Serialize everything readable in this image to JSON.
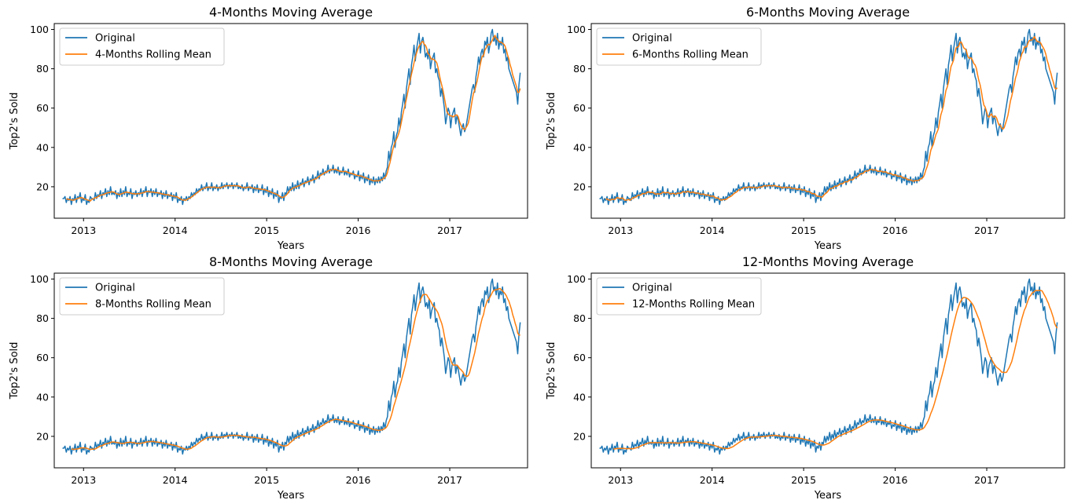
{
  "chart_data": [
    {
      "type": "line",
      "title": "4-Months Moving Average",
      "xlabel": "Years",
      "ylabel": "Top2's Sold",
      "xlim": [
        2012.68,
        2017.85
      ],
      "ylim": [
        4,
        103
      ],
      "xticks": [
        "2013",
        "2014",
        "2015",
        "2016",
        "2017"
      ],
      "yticks": [
        20,
        40,
        60,
        80,
        100
      ],
      "legend": "top-left",
      "series": [
        {
          "name": "Original",
          "color": "#1f77b4"
        },
        {
          "name": "4-Months Rolling Mean",
          "color": "#ff7f0e",
          "window": 4
        }
      ]
    },
    {
      "type": "line",
      "title": "6-Months Moving Average",
      "xlabel": "Years",
      "ylabel": "Top2's Sold",
      "xlim": [
        2012.68,
        2017.85
      ],
      "ylim": [
        4,
        103
      ],
      "xticks": [
        "2013",
        "2014",
        "2015",
        "2016",
        "2017"
      ],
      "yticks": [
        20,
        40,
        60,
        80,
        100
      ],
      "legend": "top-left",
      "series": [
        {
          "name": "Original",
          "color": "#1f77b4"
        },
        {
          "name": "6-Months Rolling Mean",
          "color": "#ff7f0e",
          "window": 6
        }
      ]
    },
    {
      "type": "line",
      "title": "8-Months Moving Average",
      "xlabel": "Years",
      "ylabel": "Top2's Sold",
      "xlim": [
        2012.68,
        2017.85
      ],
      "ylim": [
        4,
        103
      ],
      "xticks": [
        "2013",
        "2014",
        "2015",
        "2016",
        "2017"
      ],
      "yticks": [
        20,
        40,
        60,
        80,
        100
      ],
      "legend": "top-left",
      "series": [
        {
          "name": "Original",
          "color": "#1f77b4"
        },
        {
          "name": "8-Months Rolling Mean",
          "color": "#ff7f0e",
          "window": 8
        }
      ]
    },
    {
      "type": "line",
      "title": "12-Months Moving Average",
      "xlabel": "Years",
      "ylabel": "Top2's Sold",
      "xlim": [
        2012.68,
        2017.85
      ],
      "ylim": [
        4,
        103
      ],
      "xticks": [
        "2013",
        "2014",
        "2015",
        "2016",
        "2017"
      ],
      "yticks": [
        20,
        40,
        60,
        80,
        100
      ],
      "legend": "top-left",
      "series": [
        {
          "name": "Original",
          "color": "#1f77b4"
        },
        {
          "name": "12-Months Rolling Mean",
          "color": "#ff7f0e",
          "window": 12
        }
      ]
    }
  ],
  "original_series": {
    "x_start": 2012.77,
    "x_end": 2017.77,
    "values": [
      14,
      14,
      15,
      12,
      14,
      13,
      15,
      11,
      14,
      13,
      16,
      12,
      15,
      14,
      17,
      12,
      14,
      13,
      16,
      11,
      13,
      12,
      15,
      14,
      14,
      13,
      17,
      14,
      16,
      15,
      18,
      14,
      17,
      16,
      19,
      15,
      18,
      16,
      20,
      16,
      17,
      16,
      18,
      14,
      17,
      15,
      19,
      15,
      18,
      16,
      20,
      15,
      17,
      16,
      19,
      14,
      17,
      16,
      18,
      15,
      17,
      16,
      19,
      15,
      18,
      17,
      20,
      15,
      18,
      17,
      19,
      15,
      18,
      16,
      19,
      15,
      17,
      16,
      18,
      14,
      17,
      15,
      18,
      14,
      16,
      15,
      17,
      13,
      16,
      14,
      17,
      12,
      14,
      13,
      15,
      11,
      14,
      13,
      15,
      13,
      15,
      14,
      17,
      15,
      17,
      16,
      19,
      17,
      19,
      18,
      21,
      18,
      20,
      19,
      22,
      18,
      20,
      19,
      22,
      18,
      20,
      19,
      21,
      18,
      20,
      19,
      22,
      19,
      21,
      20,
      22,
      19,
      21,
      20,
      22,
      19,
      21,
      20,
      22,
      19,
      20,
      19,
      21,
      18,
      20,
      19,
      22,
      18,
      20,
      19,
      21,
      17,
      20,
      18,
      21,
      17,
      19,
      18,
      21,
      16,
      19,
      17,
      20,
      15,
      18,
      16,
      19,
      14,
      17,
      15,
      18,
      12,
      15,
      14,
      17,
      13,
      17,
      16,
      20,
      17,
      20,
      18,
      22,
      18,
      21,
      19,
      23,
      19,
      22,
      21,
      24,
      20,
      23,
      22,
      25,
      21,
      24,
      23,
      26,
      22,
      25,
      24,
      28,
      24,
      27,
      26,
      29,
      26,
      28,
      27,
      31,
      27,
      29,
      28,
      31,
      27,
      29,
      27,
      30,
      26,
      28,
      27,
      30,
      26,
      28,
      26,
      29,
      25,
      27,
      26,
      28,
      24,
      26,
      25,
      28,
      23,
      26,
      24,
      27,
      22,
      25,
      23,
      26,
      21,
      24,
      22,
      25,
      21,
      24,
      22,
      25,
      22,
      25,
      23,
      27,
      24,
      28,
      30,
      38,
      33,
      40,
      42,
      48,
      40,
      46,
      48,
      55,
      50,
      58,
      62,
      67,
      60,
      70,
      75,
      80,
      72,
      82,
      86,
      92,
      84,
      90,
      94,
      98,
      88,
      94,
      96,
      92,
      86,
      88,
      85,
      90,
      80,
      84,
      86,
      88,
      78,
      80,
      76,
      74,
      66,
      70,
      65,
      60,
      52,
      56,
      60,
      58,
      50,
      56,
      58,
      60,
      52,
      56,
      54,
      50,
      46,
      50,
      52,
      48,
      50,
      54,
      58,
      62,
      66,
      70,
      72,
      68,
      76,
      80,
      86,
      82,
      88,
      90,
      86,
      94,
      92,
      96,
      88,
      92,
      98,
      100,
      94,
      96,
      92,
      98,
      90,
      94,
      92,
      96,
      88,
      90,
      84,
      86,
      80,
      78,
      76,
      74,
      72,
      70,
      68,
      62,
      72,
      78
    ]
  }
}
